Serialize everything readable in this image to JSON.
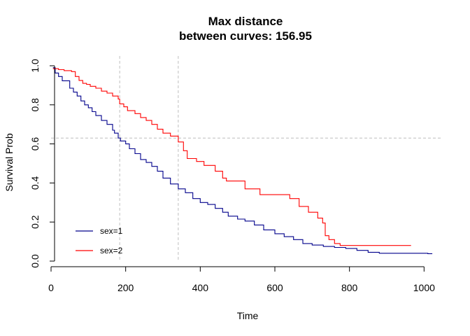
{
  "chart_data": {
    "type": "line",
    "title_lines": [
      "Max distance",
      "between curves: 156.95"
    ],
    "xlabel": "Time",
    "ylabel": "Survival Prob",
    "xlim": [
      0,
      1050
    ],
    "ylim": [
      0,
      1.05
    ],
    "x_ticks": [
      0,
      200,
      400,
      600,
      800,
      1000
    ],
    "y_ticks": [
      0.0,
      0.2,
      0.4,
      0.6,
      0.8,
      1.0
    ],
    "x_tick_labels": [
      "0",
      "200",
      "400",
      "600",
      "800",
      "1000"
    ],
    "y_tick_labels": [
      "0.0",
      "0.2",
      "0.4",
      "0.6",
      "0.8",
      "1.0"
    ],
    "grid": false,
    "legend_position": "bottom-left",
    "reference_lines": {
      "color": "#bebebe",
      "vertical_x": [
        184,
        341
      ],
      "horizontal_y": [
        0.63
      ]
    },
    "series": [
      {
        "name": "sex=1",
        "color": "#00008b",
        "x": [
          5,
          11,
          20,
          30,
          50,
          60,
          70,
          80,
          90,
          100,
          110,
          120,
          135,
          150,
          165,
          170,
          180,
          186,
          200,
          210,
          225,
          240,
          255,
          270,
          285,
          300,
          320,
          341,
          360,
          380,
          400,
          420,
          440,
          460,
          475,
          500,
          520,
          545,
          570,
          600,
          625,
          650,
          675,
          700,
          730,
          760,
          790,
          820,
          850,
          880,
          1010,
          1022
        ],
        "y": [
          0.99,
          0.963,
          0.945,
          0.923,
          0.885,
          0.865,
          0.845,
          0.82,
          0.8,
          0.785,
          0.765,
          0.745,
          0.72,
          0.7,
          0.67,
          0.655,
          0.63,
          0.615,
          0.6,
          0.575,
          0.55,
          0.52,
          0.505,
          0.485,
          0.46,
          0.425,
          0.395,
          0.37,
          0.35,
          0.32,
          0.3,
          0.29,
          0.27,
          0.25,
          0.23,
          0.215,
          0.205,
          0.185,
          0.16,
          0.14,
          0.125,
          0.11,
          0.09,
          0.082,
          0.075,
          0.07,
          0.065,
          0.055,
          0.045,
          0.04,
          0.038,
          0.038
        ]
      },
      {
        "name": "sex=2",
        "color": "#ff0000",
        "x": [
          5,
          20,
          35,
          55,
          65,
          75,
          85,
          95,
          105,
          120,
          135,
          150,
          165,
          180,
          184,
          195,
          205,
          225,
          240,
          255,
          270,
          285,
          300,
          320,
          341,
          355,
          365,
          390,
          410,
          440,
          460,
          470,
          500,
          520,
          545,
          560,
          600,
          640,
          665,
          690,
          715,
          728,
          735,
          745,
          760,
          775,
          800,
          960,
          965
        ],
        "y": [
          0.985,
          0.98,
          0.975,
          0.97,
          0.945,
          0.925,
          0.91,
          0.905,
          0.895,
          0.885,
          0.87,
          0.86,
          0.845,
          0.83,
          0.805,
          0.79,
          0.77,
          0.755,
          0.735,
          0.72,
          0.7,
          0.675,
          0.655,
          0.64,
          0.61,
          0.565,
          0.525,
          0.51,
          0.49,
          0.46,
          0.425,
          0.41,
          0.41,
          0.37,
          0.37,
          0.34,
          0.34,
          0.32,
          0.28,
          0.25,
          0.22,
          0.195,
          0.13,
          0.11,
          0.09,
          0.08,
          0.08,
          0.08,
          0.08
        ]
      }
    ]
  }
}
